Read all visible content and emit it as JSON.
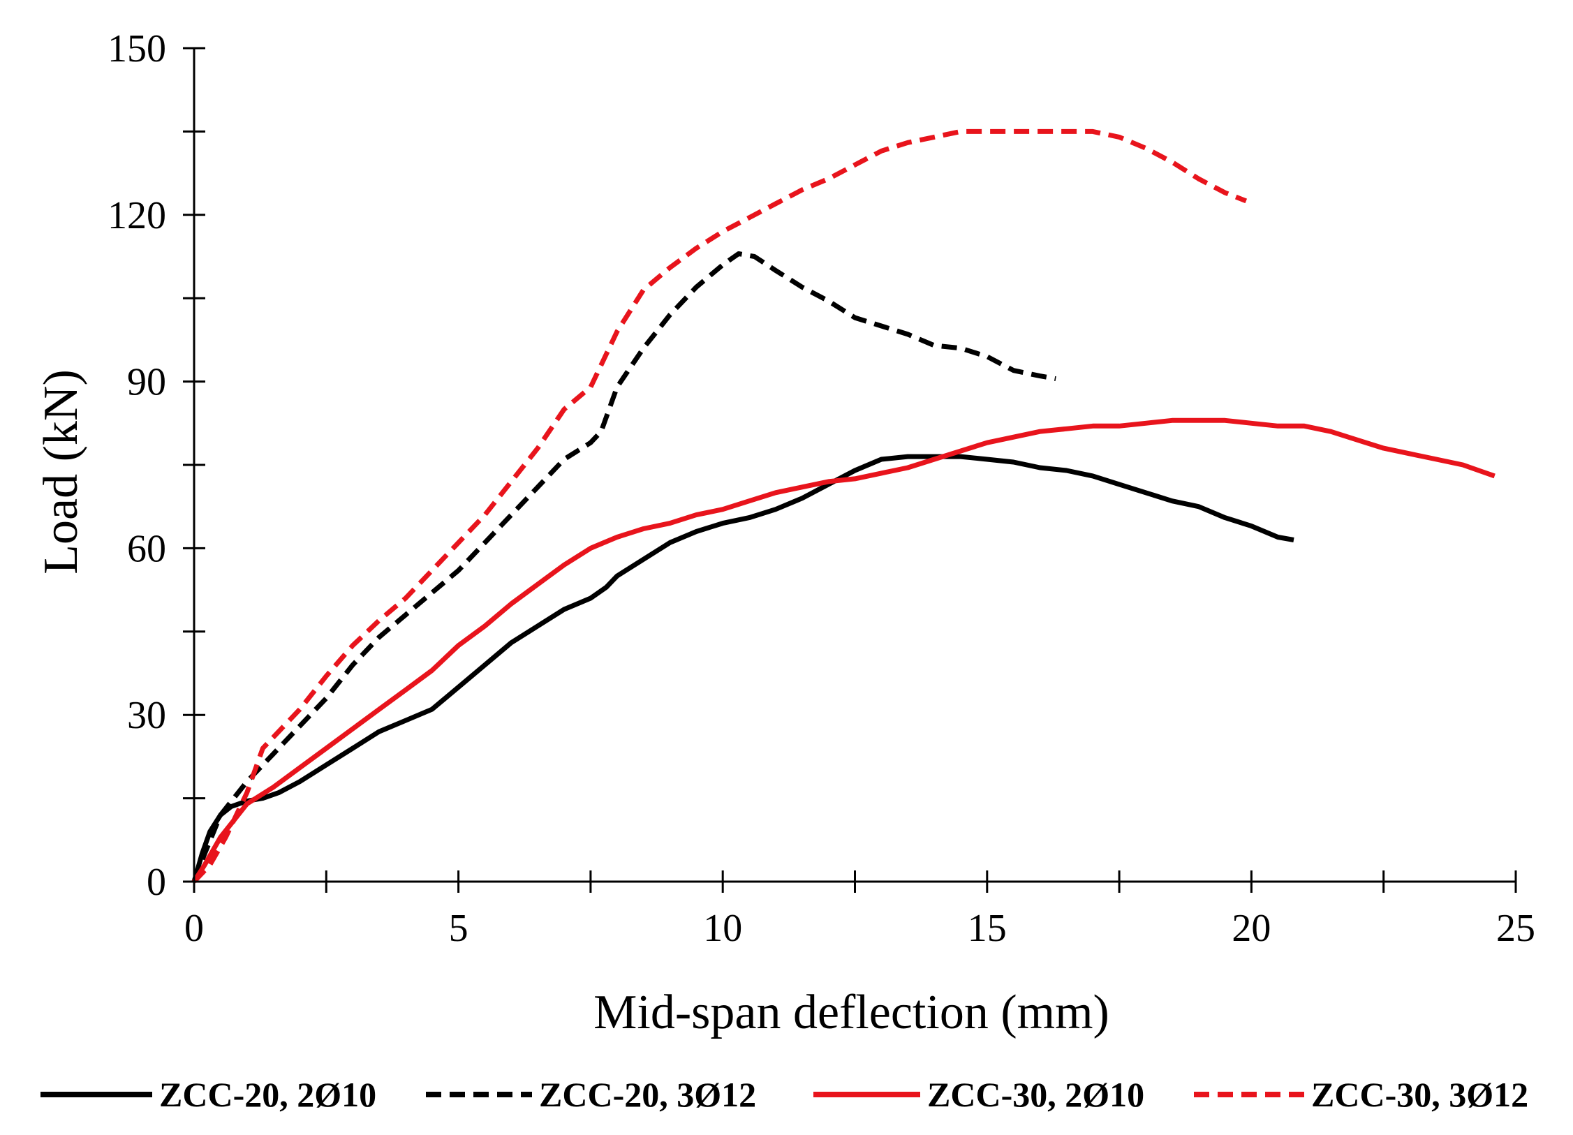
{
  "chart_data": {
    "type": "line",
    "title": "",
    "xlabel": "Mid-span deflection (mm)",
    "ylabel": "Load (kN)",
    "xlim": [
      0,
      25
    ],
    "ylim": [
      0,
      150
    ],
    "xticks": [
      0,
      5,
      10,
      15,
      20,
      25
    ],
    "yticks": [
      0,
      30,
      60,
      90,
      120,
      150
    ],
    "grid": false,
    "legend_position": "bottom",
    "series": [
      {
        "name": "ZCC-20, 2Ø10",
        "color": "#000000",
        "dash": "solid",
        "x": [
          0,
          0.15,
          0.3,
          0.5,
          0.7,
          1.0,
          1.3,
          1.6,
          2.0,
          2.5,
          3.0,
          3.5,
          4.0,
          4.5,
          5.0,
          5.5,
          6.0,
          6.5,
          7.0,
          7.5,
          7.8,
          8.0,
          8.5,
          9.0,
          9.5,
          10.0,
          10.5,
          11.0,
          11.5,
          12.0,
          12.5,
          13.0,
          13.5,
          14.0,
          14.5,
          15.0,
          15.5,
          16.0,
          16.5,
          17.0,
          17.5,
          18.0,
          18.5,
          19.0,
          19.5,
          20.0,
          20.5,
          20.8
        ],
        "y": [
          0,
          5,
          9,
          12,
          13.5,
          14.5,
          15,
          16,
          18,
          21,
          24,
          27,
          29,
          31,
          35,
          39,
          43,
          46,
          49,
          51,
          53,
          55,
          58,
          61,
          63,
          64.5,
          65.5,
          67,
          69,
          71.5,
          74,
          76,
          76.5,
          76.5,
          76.5,
          76,
          75.5,
          74.5,
          74,
          73,
          71.5,
          70,
          68.5,
          67.5,
          65.5,
          64,
          62,
          61.5
        ]
      },
      {
        "name": "ZCC-20, 3Ø12",
        "color": "#000000",
        "dash": "dashed",
        "x": [
          0,
          0.2,
          0.5,
          1.0,
          1.5,
          2.0,
          2.5,
          3.0,
          3.5,
          4.0,
          4.5,
          5.0,
          5.5,
          6.0,
          6.5,
          7.0,
          7.5,
          7.7,
          8.0,
          8.5,
          9.0,
          9.5,
          10.0,
          10.3,
          10.6,
          11.0,
          11.5,
          12.0,
          12.5,
          13.0,
          13.5,
          14.0,
          14.5,
          15.0,
          15.5,
          16.0,
          16.3
        ],
        "y": [
          0,
          5,
          12,
          18,
          23,
          28,
          33,
          39,
          44,
          48,
          52,
          56,
          61,
          66,
          71,
          76,
          79,
          81,
          89,
          96,
          102,
          107,
          111,
          113,
          112.5,
          110,
          107,
          104.5,
          101.5,
          100,
          98.5,
          96.5,
          96,
          94.5,
          92,
          91,
          90.5
        ]
      },
      {
        "name": "ZCC-30, 2Ø10",
        "color": "#e8141c",
        "dash": "solid",
        "x": [
          0,
          0.2,
          0.5,
          1.0,
          1.5,
          2.0,
          2.5,
          3.0,
          3.5,
          4.0,
          4.5,
          5.0,
          5.5,
          6.0,
          6.5,
          7.0,
          7.5,
          8.0,
          8.5,
          9.0,
          9.5,
          10.0,
          10.5,
          11.0,
          11.5,
          12.0,
          12.5,
          13.0,
          13.5,
          14.0,
          14.5,
          15.0,
          15.5,
          16.0,
          16.5,
          17.0,
          17.5,
          18.0,
          18.5,
          19.0,
          19.5,
          20.0,
          20.5,
          21.0,
          21.5,
          22.0,
          22.5,
          23.0,
          23.5,
          24.0,
          24.3,
          24.6
        ],
        "y": [
          0,
          3,
          8,
          14,
          17,
          20.5,
          24,
          27.5,
          31,
          34.5,
          38,
          42.5,
          46,
          50,
          53.5,
          57,
          60,
          62,
          63.5,
          64.5,
          66,
          67,
          68.5,
          70,
          71,
          72,
          72.5,
          73.5,
          74.5,
          76,
          77.5,
          79,
          80,
          81,
          81.5,
          82,
          82,
          82.5,
          83,
          83,
          83,
          82.5,
          82,
          82,
          81,
          79.5,
          78,
          77,
          76,
          75,
          74,
          73
        ]
      },
      {
        "name": "ZCC-30, 3Ø12",
        "color": "#e8141c",
        "dash": "dashed",
        "x": [
          0,
          0.3,
          0.6,
          1.0,
          1.3,
          1.7,
          2.0,
          2.5,
          3.0,
          3.5,
          4.0,
          4.5,
          5.0,
          5.5,
          6.0,
          6.5,
          7.0,
          7.5,
          8.0,
          8.5,
          9.0,
          9.5,
          10.0,
          10.5,
          11.0,
          11.5,
          12.0,
          12.5,
          13.0,
          13.5,
          14.0,
          14.5,
          15.0,
          15.5,
          16.0,
          16.5,
          17.0,
          17.5,
          18.0,
          18.5,
          19.0,
          19.5,
          19.9
        ],
        "y": [
          0,
          3,
          8,
          16,
          24,
          28,
          31,
          37,
          42.5,
          47,
          51,
          56,
          61,
          66,
          72,
          78,
          85,
          89,
          99,
          106.5,
          110.5,
          114,
          117,
          119.5,
          122,
          124.5,
          126.5,
          129,
          131.5,
          133,
          134,
          135,
          135,
          135,
          135,
          135,
          135,
          134,
          132,
          129.5,
          126.5,
          124,
          122.5
        ]
      }
    ]
  }
}
